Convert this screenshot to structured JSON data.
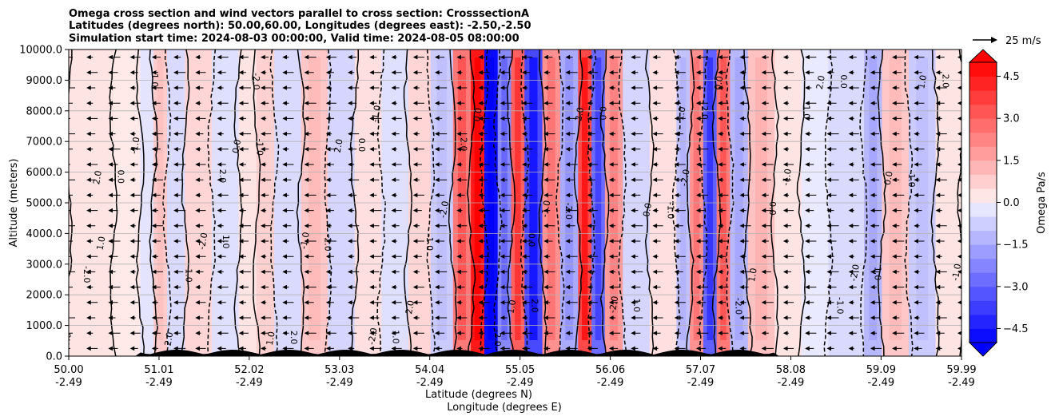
{
  "chart_data": {
    "type": "heatmap",
    "title_lines": [
      "Omega cross section and wind vectors parallel to cross section: CrosssectionA",
      "Latitudes (degrees north): 50.00,60.00, Longitudes (degrees east): -2.50,-2.50",
      "Simulation start time: 2024-08-03 00:00:00, Valid time: 2024-08-05 08:00:00"
    ],
    "ylabel": "Altitude (meters)",
    "xlabel_line1": "Latitude (degrees N)",
    "xlabel_line2": "Longitude (degrees E)",
    "ylim": [
      0,
      10000
    ],
    "y_ticks": [
      "0.0",
      "1000.0",
      "2000.0",
      "3000.0",
      "4000.0",
      "5000.0",
      "6000.0",
      "7000.0",
      "8000.0",
      "9000.0",
      "10000.0"
    ],
    "xlim": [
      50.0,
      59.99
    ],
    "x_ticks": [
      {
        "lat": "50.00",
        "lon": "-2.49"
      },
      {
        "lat": "51.01",
        "lon": "-2.49"
      },
      {
        "lat": "52.02",
        "lon": "-2.49"
      },
      {
        "lat": "53.03",
        "lon": "-2.49"
      },
      {
        "lat": "54.04",
        "lon": "-2.49"
      },
      {
        "lat": "55.05",
        "lon": "-2.49"
      },
      {
        "lat": "56.06",
        "lon": "-2.49"
      },
      {
        "lat": "57.07",
        "lon": "-2.49"
      },
      {
        "lat": "58.08",
        "lon": "-2.49"
      },
      {
        "lat": "59.09",
        "lon": "-2.49"
      },
      {
        "lat": "59.99",
        "lon": "-2.49"
      }
    ],
    "grid": "horizontal",
    "colorbar": {
      "label": "Omega Pa/s",
      "range": [
        -5.0,
        5.0
      ],
      "ticks": [
        "4.5",
        "3.0",
        "1.5",
        "0.0",
        "−1.5",
        "−3.0",
        "−4.5"
      ],
      "low_color": "#0000ff",
      "high_color": "#ff0000",
      "extend": "both"
    },
    "quiver_key": "25 m/s",
    "omega_bands": [
      {
        "lat": 50.0,
        "omega": 0.3
      },
      {
        "lat": 50.5,
        "omega": 0.2
      },
      {
        "lat": 50.8,
        "omega": -0.3
      },
      {
        "lat": 50.95,
        "omega": 0.8
      },
      {
        "lat": 51.1,
        "omega": -0.5
      },
      {
        "lat": 51.3,
        "omega": 0.6
      },
      {
        "lat": 51.6,
        "omega": -0.4
      },
      {
        "lat": 51.9,
        "omega": 0.3
      },
      {
        "lat": 52.1,
        "omega": 0.7
      },
      {
        "lat": 52.3,
        "omega": -0.5
      },
      {
        "lat": 52.6,
        "omega": 0.9
      },
      {
        "lat": 52.9,
        "omega": -0.6
      },
      {
        "lat": 53.2,
        "omega": 0.4
      },
      {
        "lat": 53.5,
        "omega": -0.4
      },
      {
        "lat": 53.8,
        "omega": 0.6
      },
      {
        "lat": 54.05,
        "omega": -0.8
      },
      {
        "lat": 54.3,
        "omega": 2.5
      },
      {
        "lat": 54.5,
        "omega": 4.5
      },
      {
        "lat": 54.65,
        "omega": -4.8
      },
      {
        "lat": 54.8,
        "omega": -2.2
      },
      {
        "lat": 54.95,
        "omega": 3.0
      },
      {
        "lat": 55.1,
        "omega": -3.5
      },
      {
        "lat": 55.3,
        "omega": 2.0
      },
      {
        "lat": 55.5,
        "omega": -1.5
      },
      {
        "lat": 55.7,
        "omega": 3.5
      },
      {
        "lat": 55.85,
        "omega": -2.8
      },
      {
        "lat": 56.0,
        "omega": 1.8
      },
      {
        "lat": 56.2,
        "omega": -0.6
      },
      {
        "lat": 56.5,
        "omega": 0.4
      },
      {
        "lat": 56.8,
        "omega": -1.0
      },
      {
        "lat": 56.95,
        "omega": 2.0
      },
      {
        "lat": 57.1,
        "omega": -3.0
      },
      {
        "lat": 57.25,
        "omega": 2.5
      },
      {
        "lat": 57.4,
        "omega": -1.2
      },
      {
        "lat": 57.6,
        "omega": 1.0
      },
      {
        "lat": 57.9,
        "omega": 0.3
      },
      {
        "lat": 58.2,
        "omega": -0.2
      },
      {
        "lat": 58.5,
        "omega": -0.5
      },
      {
        "lat": 58.9,
        "omega": -1.2
      },
      {
        "lat": 59.1,
        "omega": 0.9
      },
      {
        "lat": 59.4,
        "omega": -0.8
      },
      {
        "lat": 59.7,
        "omega": 0.3
      },
      {
        "lat": 59.99,
        "omega": 0.1
      }
    ],
    "contour_labels": [
      "0.0",
      "1.0",
      "-1.0",
      "2.0",
      "-2.0"
    ]
  }
}
